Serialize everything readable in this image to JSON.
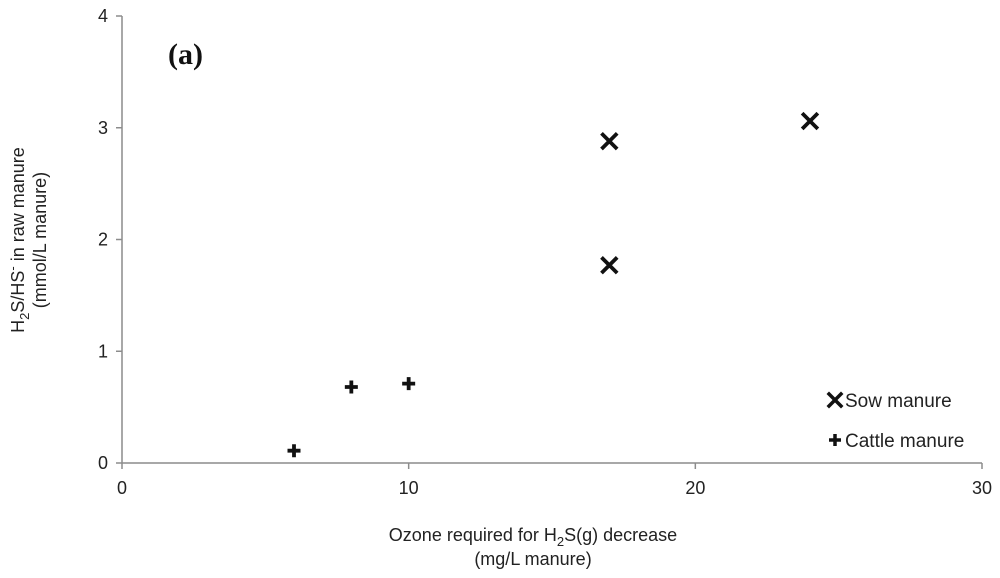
{
  "chart_data": {
    "type": "scatter",
    "panel_label": "(a)",
    "xlabel": {
      "line1": {
        "pre": "Ozone required for H",
        "sub": "2",
        "post": "S(g) decrease"
      },
      "line2": "(mg/L manure)"
    },
    "ylabel": {
      "line1": {
        "pre": "H",
        "sub": "2",
        "mid": "S/HS",
        "sup": "-",
        "post": " in raw manure"
      },
      "line2": "(mmol/L manure)"
    },
    "xlim": [
      0,
      30
    ],
    "ylim": [
      0,
      4
    ],
    "xticks": [
      0,
      10,
      20,
      30
    ],
    "yticks": [
      0,
      1,
      2,
      3,
      4
    ],
    "grid": false,
    "legend_position": "bottom-right",
    "series": [
      {
        "name": "Sow manure",
        "marker": "x",
        "color": "#111111",
        "points": [
          {
            "x": 17,
            "y": 2.88
          },
          {
            "x": 17,
            "y": 1.77
          },
          {
            "x": 24,
            "y": 3.06
          }
        ]
      },
      {
        "name": "Cattle manure",
        "marker": "plus",
        "color": "#111111",
        "points": [
          {
            "x": 6,
            "y": 0.11
          },
          {
            "x": 8,
            "y": 0.68
          },
          {
            "x": 10,
            "y": 0.71
          }
        ]
      }
    ]
  }
}
